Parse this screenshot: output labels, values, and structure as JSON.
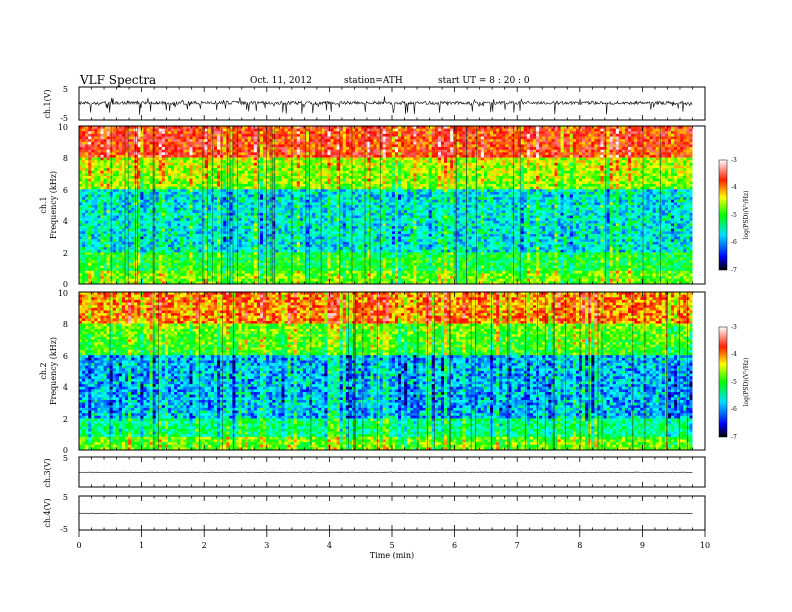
{
  "header": {
    "title": "VLF  Spectra",
    "date": "Oct. 11, 2012",
    "station": "station=ATH",
    "start_ut": "start  UT  =   8 : 20 : 0"
  },
  "chart_data": [
    {
      "type": "line",
      "panel": "ch1-waveform",
      "ylabel": "ch.1(V)",
      "ylim": [
        -5,
        5
      ],
      "y_ticks": [
        "5",
        "-5"
      ],
      "xlim": [
        0,
        10
      ],
      "x_end": 9.8,
      "signal": "noisy waveform centered near 0 V with dense negative spikes"
    },
    {
      "type": "heatmap",
      "panel": "ch1-spectrogram",
      "ylabel_top": "ch.1",
      "ylabel": "Frequency  (kHz)",
      "ylim": [
        0,
        10
      ],
      "y_ticks": [
        "0",
        "2",
        "4",
        "6",
        "8",
        "10"
      ],
      "xlim": [
        0,
        9.8
      ],
      "colorbar": {
        "label": "log(PSD)(V²/Hz)",
        "ticks": [
          "-3",
          "-4",
          "-5",
          "-6",
          "-7"
        ],
        "range": [
          -7,
          -3
        ]
      }
    },
    {
      "type": "heatmap",
      "panel": "ch2-spectrogram",
      "ylabel_top": "ch.2",
      "ylabel": "Frequency  (kHz)",
      "ylim": [
        0,
        10
      ],
      "y_ticks": [
        "0",
        "2",
        "4",
        "6",
        "8",
        "10"
      ],
      "xlim": [
        0,
        9.8
      ],
      "colorbar": {
        "label": "log(PSD)(V²/Hz)",
        "ticks": [
          "-3",
          "-4",
          "-5",
          "-6",
          "-7"
        ],
        "range": [
          -7,
          -3
        ]
      }
    },
    {
      "type": "line",
      "panel": "ch3-waveform",
      "ylabel": "ch.3(V)",
      "ylim": [
        -5,
        5
      ],
      "y_ticks": [
        "5",
        "-5"
      ],
      "xlim": [
        0,
        10
      ],
      "x_end": 9.8,
      "signal": "nearly flat line slightly below 0 V"
    },
    {
      "type": "line",
      "panel": "ch4-waveform",
      "ylabel": "ch.4(V)",
      "ylim": [
        -5,
        5
      ],
      "y_ticks": [
        "5",
        "-5"
      ],
      "xlim": [
        0,
        10
      ],
      "x_end": 9.8,
      "signal": "nearly flat line slightly below 0 V"
    }
  ],
  "x_axis": {
    "label": "Time  (min)",
    "ticks": [
      "0",
      "1",
      "2",
      "3",
      "4",
      "5",
      "6",
      "7",
      "8",
      "9",
      "10"
    ]
  },
  "colors": {
    "colormap": [
      "#000000",
      "#0000ff",
      "#00ffff",
      "#00ff00",
      "#ffff00",
      "#ff0000",
      "#ffffff"
    ],
    "line": "#000000"
  }
}
